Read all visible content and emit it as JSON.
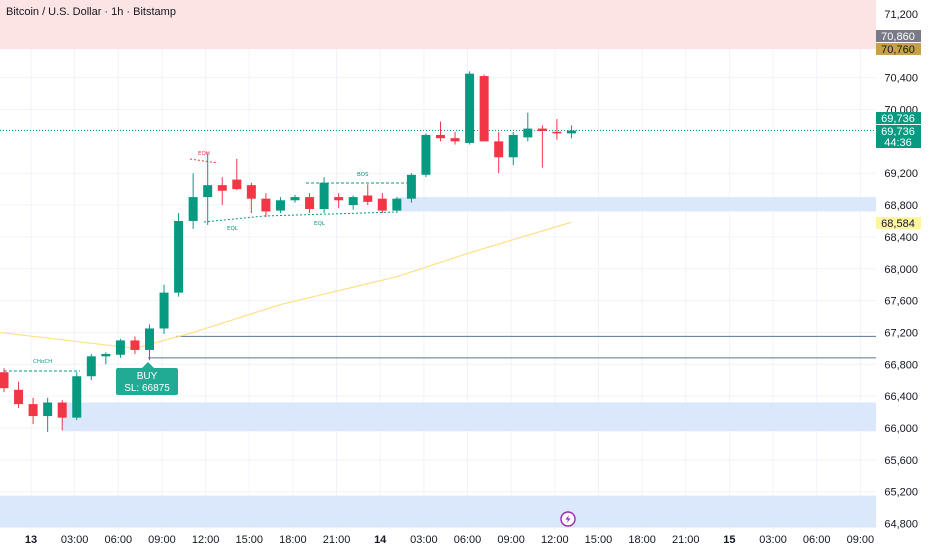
{
  "title": "Bitcoin / U.S. Dollar · 1h · Bitstamp",
  "colors": {
    "up": "#089981",
    "down": "#f23645",
    "grid": "#f0f3fa",
    "sma": "#ffe082",
    "supply_zone": "#fce4e4",
    "demand_zone": "#dbe7fb",
    "hline": "#5b7490"
  },
  "price_axis": {
    "ticks": [
      "71,200",
      "70,400",
      "70,000",
      "69,200",
      "68,800",
      "68,400",
      "68,000",
      "67,600",
      "67,200",
      "66,800",
      "66,400",
      "66,000",
      "65,600",
      "65,200",
      "64,800"
    ]
  },
  "price_tags": [
    {
      "value": "70,860",
      "bg": "#787b86",
      "fg": "#ffffff"
    },
    {
      "value": "70,760",
      "bg": "#c8a147",
      "fg": "#131722"
    },
    {
      "value": "69,736",
      "bg": "#089981",
      "fg": "#ffffff"
    },
    {
      "value": "69,736",
      "bg": "#089981",
      "fg": "#ffffff"
    },
    {
      "value": "44:36",
      "bg": "#089981",
      "fg": "#ffffff"
    },
    {
      "value": "68,584",
      "bg": "#fff59d",
      "fg": "#131722"
    }
  ],
  "time_axis": {
    "ticks": [
      {
        "label": "13",
        "bold": true
      },
      {
        "label": "03:00",
        "bold": false
      },
      {
        "label": "06:00",
        "bold": false
      },
      {
        "label": "09:00",
        "bold": false
      },
      {
        "label": "12:00",
        "bold": false
      },
      {
        "label": "15:00",
        "bold": false
      },
      {
        "label": "18:00",
        "bold": false
      },
      {
        "label": "21:00",
        "bold": false
      },
      {
        "label": "14",
        "bold": true
      },
      {
        "label": "03:00",
        "bold": false
      },
      {
        "label": "06:00",
        "bold": false
      },
      {
        "label": "09:00",
        "bold": false
      },
      {
        "label": "12:00",
        "bold": false
      },
      {
        "label": "15:00",
        "bold": false
      },
      {
        "label": "18:00",
        "bold": false
      },
      {
        "label": "21:00",
        "bold": false
      },
      {
        "label": "15",
        "bold": true
      },
      {
        "label": "03:00",
        "bold": false
      },
      {
        "label": "06:00",
        "bold": false
      },
      {
        "label": "09:00",
        "bold": false
      }
    ]
  },
  "annotations": {
    "choch": "CHoCH",
    "eqh": "EQH",
    "eql_1": "EQL",
    "eql_2": "EQL",
    "bos": "BOS",
    "buy_line1": "BUY",
    "buy_line2": "SL: 66875"
  },
  "icons": {
    "flash": "lightning-icon"
  },
  "chart_data": {
    "type": "candlestick",
    "symbol": "Bitcoin / U.S. Dollar",
    "interval": "1h",
    "exchange": "Bitstamp",
    "price_range": [
      64700,
      71500
    ],
    "candles": [
      {
        "t": "12 23:00",
        "o": 66700,
        "h": 66750,
        "l": 66450,
        "c": 66500
      },
      {
        "t": "13 00:00",
        "o": 66480,
        "h": 66580,
        "l": 66250,
        "c": 66300
      },
      {
        "t": "13 01:00",
        "o": 66300,
        "h": 66380,
        "l": 66050,
        "c": 66150
      },
      {
        "t": "13 02:00",
        "o": 66150,
        "h": 66380,
        "l": 65950,
        "c": 66320
      },
      {
        "t": "13 03:00",
        "o": 66320,
        "h": 66350,
        "l": 65970,
        "c": 66130
      },
      {
        "t": "13 04:00",
        "o": 66130,
        "h": 66700,
        "l": 66100,
        "c": 66650
      },
      {
        "t": "13 05:00",
        "o": 66650,
        "h": 66930,
        "l": 66600,
        "c": 66900
      },
      {
        "t": "13 06:00",
        "o": 66900,
        "h": 66950,
        "l": 66800,
        "c": 66930
      },
      {
        "t": "13 07:00",
        "o": 66920,
        "h": 67120,
        "l": 66880,
        "c": 67100
      },
      {
        "t": "13 08:00",
        "o": 67100,
        "h": 67150,
        "l": 66930,
        "c": 66980
      },
      {
        "t": "13 09:00",
        "o": 66980,
        "h": 67300,
        "l": 66850,
        "c": 67250
      },
      {
        "t": "13 10:00",
        "o": 67250,
        "h": 67800,
        "l": 67180,
        "c": 67700
      },
      {
        "t": "13 11:00",
        "o": 67700,
        "h": 68700,
        "l": 67650,
        "c": 68600
      },
      {
        "t": "13 12:00",
        "o": 68600,
        "h": 69200,
        "l": 68500,
        "c": 68900
      },
      {
        "t": "13 13:00",
        "o": 68900,
        "h": 69450,
        "l": 68550,
        "c": 69050
      },
      {
        "t": "13 14:00",
        "o": 69050,
        "h": 69150,
        "l": 68800,
        "c": 68980
      },
      {
        "t": "13 15:00",
        "o": 69120,
        "h": 69380,
        "l": 68990,
        "c": 69000
      },
      {
        "t": "13 16:00",
        "o": 69050,
        "h": 69080,
        "l": 68700,
        "c": 68880
      },
      {
        "t": "13 17:00",
        "o": 68880,
        "h": 68950,
        "l": 68650,
        "c": 68720
      },
      {
        "t": "13 18:00",
        "o": 68730,
        "h": 68900,
        "l": 68700,
        "c": 68860
      },
      {
        "t": "13 19:00",
        "o": 68860,
        "h": 68930,
        "l": 68830,
        "c": 68900
      },
      {
        "t": "13 20:00",
        "o": 68900,
        "h": 68950,
        "l": 68700,
        "c": 68750
      },
      {
        "t": "13 21:00",
        "o": 68750,
        "h": 69150,
        "l": 68700,
        "c": 69080
      },
      {
        "t": "13 22:00",
        "o": 68900,
        "h": 68950,
        "l": 68760,
        "c": 68860
      },
      {
        "t": "13 23:00",
        "o": 68800,
        "h": 68920,
        "l": 68740,
        "c": 68900
      },
      {
        "t": "14 00:00",
        "o": 68920,
        "h": 69060,
        "l": 68800,
        "c": 68840
      },
      {
        "t": "14 01:00",
        "o": 68880,
        "h": 68950,
        "l": 68700,
        "c": 68730
      },
      {
        "t": "14 02:00",
        "o": 68730,
        "h": 68900,
        "l": 68700,
        "c": 68880
      },
      {
        "t": "14 03:00",
        "o": 68880,
        "h": 69200,
        "l": 68830,
        "c": 69180
      },
      {
        "t": "14 04:00",
        "o": 69180,
        "h": 69700,
        "l": 69150,
        "c": 69680
      },
      {
        "t": "14 05:00",
        "o": 69680,
        "h": 69850,
        "l": 69600,
        "c": 69640
      },
      {
        "t": "14 06:00",
        "o": 69640,
        "h": 69720,
        "l": 69560,
        "c": 69600
      },
      {
        "t": "14 07:00",
        "o": 69580,
        "h": 70480,
        "l": 69560,
        "c": 70450
      },
      {
        "t": "14 08:00",
        "o": 70420,
        "h": 70440,
        "l": 69600,
        "c": 69600
      },
      {
        "t": "14 09:00",
        "o": 69600,
        "h": 69720,
        "l": 69200,
        "c": 69400
      },
      {
        "t": "14 10:00",
        "o": 69400,
        "h": 69720,
        "l": 69300,
        "c": 69680
      },
      {
        "t": "14 11:00",
        "o": 69650,
        "h": 69960,
        "l": 69600,
        "c": 69760
      },
      {
        "t": "14 12:00",
        "o": 69760,
        "h": 69800,
        "l": 69270,
        "c": 69730
      },
      {
        "t": "14 13:00",
        "o": 69720,
        "h": 69880,
        "l": 69620,
        "c": 69700
      },
      {
        "t": "14 14:00",
        "o": 69700,
        "h": 69800,
        "l": 69640,
        "c": 69736
      }
    ],
    "moving_average": [
      {
        "t": "12 23:00",
        "v": 67200
      },
      {
        "t": "13 08:00",
        "v": 67000
      },
      {
        "t": "13 12:00",
        "v": 67200
      },
      {
        "t": "13 18:00",
        "v": 67550
      },
      {
        "t": "14 02:00",
        "v": 67900
      },
      {
        "t": "14 07:00",
        "v": 68200
      },
      {
        "t": "14 14:00",
        "v": 68584
      }
    ],
    "zones": [
      {
        "type": "supply",
        "from": 70760,
        "to": 71500
      },
      {
        "type": "demand",
        "from": 68720,
        "to": 68900
      },
      {
        "type": "demand",
        "from": 65960,
        "to": 66320
      },
      {
        "type": "demand",
        "from": 64750,
        "to": 65150
      }
    ],
    "horizontal_lines": [
      67150,
      66880
    ],
    "current_price": 69736,
    "countdown": "44:36"
  }
}
